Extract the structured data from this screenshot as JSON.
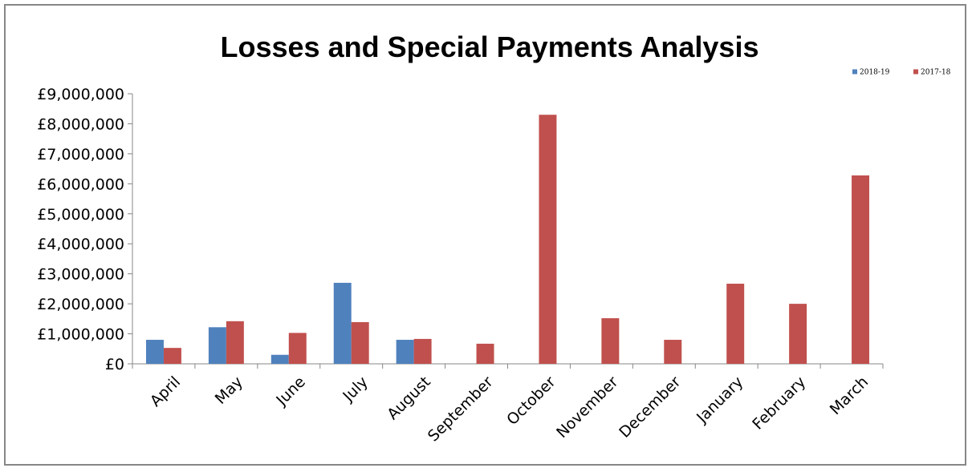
{
  "chart_data": {
    "type": "bar",
    "title": "Losses and Special Payments Analysis",
    "xlabel": "",
    "ylabel": "",
    "categories": [
      "April",
      "May",
      "June",
      "July",
      "August",
      "September",
      "October",
      "November",
      "December",
      "January",
      "February",
      "March"
    ],
    "series": [
      {
        "name": "2018-19",
        "color": "#4f81bd",
        "values": [
          800000,
          1220000,
          300000,
          2700000,
          800000,
          0,
          0,
          0,
          0,
          0,
          0,
          0
        ]
      },
      {
        "name": "2017-18",
        "color": "#c0504d",
        "values": [
          530000,
          1420000,
          1030000,
          1390000,
          830000,
          670000,
          8300000,
          1520000,
          800000,
          2670000,
          2000000,
          6280000
        ]
      }
    ],
    "ylim": [
      0,
      9000000
    ],
    "yticks": [
      0,
      1000000,
      2000000,
      3000000,
      4000000,
      5000000,
      6000000,
      7000000,
      8000000,
      9000000
    ],
    "ytick_labels": [
      "£0",
      "£1,000,000",
      "£2,000,000",
      "£3,000,000",
      "£4,000,000",
      "£5,000,000",
      "£6,000,000",
      "£7,000,000",
      "£8,000,000",
      "£9,000,000"
    ],
    "grid": false,
    "legend_position": "top-right"
  }
}
